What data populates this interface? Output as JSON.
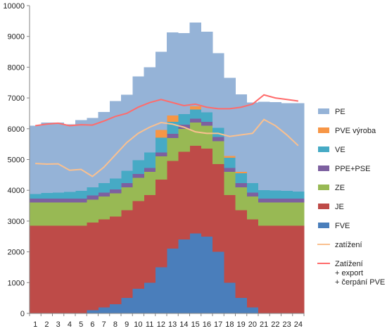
{
  "chart_data": {
    "type": "area",
    "title": "",
    "xlabel": "",
    "ylabel": "",
    "ylim": [
      0,
      10000
    ],
    "yticks": [
      0,
      1000,
      2000,
      3000,
      4000,
      5000,
      6000,
      7000,
      8000,
      9000,
      10000
    ],
    "x": [
      1,
      2,
      3,
      4,
      5,
      6,
      7,
      8,
      9,
      10,
      11,
      12,
      13,
      14,
      15,
      16,
      17,
      18,
      19,
      20,
      21,
      22,
      23,
      24
    ],
    "grid": false,
    "legend_position": "right",
    "stack_order": [
      "FVE",
      "JE",
      "ZE",
      "PPE+PSE",
      "VE",
      "PVE výroba",
      "PE"
    ],
    "series": [
      {
        "name": "FVE",
        "kind": "stack",
        "color": "#4a7ebb",
        "values": [
          0,
          0,
          0,
          0,
          0,
          100,
          200,
          300,
          500,
          800,
          1000,
          1500,
          2100,
          2400,
          2600,
          2500,
          2000,
          1000,
          500,
          200,
          0,
          0,
          0,
          0
        ]
      },
      {
        "name": "JE",
        "kind": "stack",
        "color": "#be4b48",
        "values": [
          2850,
          2850,
          2850,
          2850,
          2850,
          2850,
          2850,
          2850,
          2850,
          2850,
          2850,
          2850,
          2850,
          2850,
          2850,
          2850,
          2850,
          2850,
          2850,
          2850,
          2850,
          2850,
          2850,
          2850
        ]
      },
      {
        "name": "ZE",
        "kind": "stack",
        "color": "#98b954",
        "values": [
          750,
          750,
          750,
          750,
          750,
          750,
          750,
          750,
          750,
          750,
          750,
          750,
          750,
          750,
          750,
          750,
          750,
          750,
          750,
          750,
          750,
          750,
          750,
          750
        ]
      },
      {
        "name": "PPE+PSE",
        "kind": "stack",
        "color": "#7d60a0",
        "values": [
          130,
          130,
          130,
          130,
          130,
          130,
          130,
          130,
          130,
          130,
          130,
          130,
          130,
          130,
          130,
          130,
          130,
          130,
          130,
          130,
          130,
          130,
          130,
          130
        ]
      },
      {
        "name": "VE",
        "kind": "stack",
        "color": "#46aac5",
        "values": [
          150,
          180,
          200,
          220,
          250,
          270,
          300,
          350,
          400,
          450,
          500,
          480,
          400,
          350,
          300,
          300,
          300,
          330,
          320,
          300,
          280,
          260,
          250,
          230
        ]
      },
      {
        "name": "PVE výroba",
        "kind": "stack",
        "color": "#f79646",
        "values": [
          0,
          0,
          0,
          0,
          0,
          0,
          0,
          0,
          0,
          0,
          0,
          250,
          200,
          0,
          100,
          0,
          0,
          50,
          50,
          0,
          0,
          0,
          0,
          0
        ]
      },
      {
        "name": "PE",
        "kind": "stack",
        "color": "#95b3d7",
        "values": [
          2220,
          2290,
          2270,
          2200,
          2300,
          2250,
          2320,
          2520,
          2470,
          2720,
          2770,
          2540,
          2700,
          2630,
          2720,
          2620,
          2420,
          2540,
          2520,
          2620,
          2870,
          2880,
          2850,
          2870
        ]
      },
      {
        "name": "zatížení",
        "kind": "line",
        "color": "#fac08f",
        "values": [
          4870,
          4850,
          4860,
          4650,
          4680,
          4450,
          4750,
          5150,
          5550,
          5850,
          6050,
          6200,
          6150,
          6050,
          5900,
          5850,
          5850,
          5750,
          5800,
          5850,
          6300,
          6100,
          5800,
          5450
        ]
      },
      {
        "name": "Zatížení + export + čerpání PVE",
        "kind": "line",
        "color": "#ff6b6b",
        "values": [
          6100,
          6150,
          6180,
          6100,
          6130,
          6120,
          6250,
          6400,
          6500,
          6700,
          6850,
          6950,
          6850,
          6750,
          6800,
          6700,
          6650,
          6650,
          6700,
          6800,
          7100,
          7000,
          6950,
          6900
        ]
      }
    ]
  }
}
